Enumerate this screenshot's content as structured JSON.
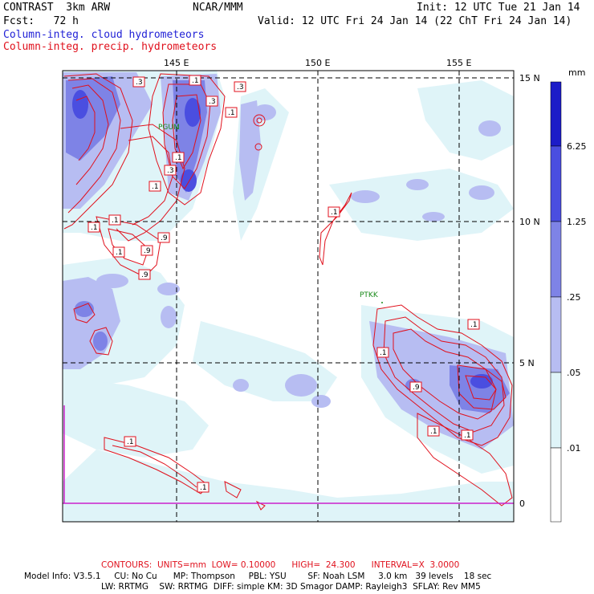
{
  "header": {
    "model": "CONTRAST  3km ARW",
    "org": "NCAR/MMM",
    "init": "Init: 12 UTC Tue 21 Jan 14",
    "fcst": "Fcst:   72 h",
    "valid": "Valid: 12 UTC Fri 24 Jan 14 (22 ChT Fri 24 Jan 14)",
    "field_cloud": "Column-integ. cloud hydrometeors",
    "field_precip": "Column-integ. precip. hydrometeors"
  },
  "map": {
    "lon_labels": [
      "145 E",
      "150 E",
      "155 E"
    ],
    "lat_labels": [
      "15 N",
      "10 N",
      "5 N",
      "0"
    ],
    "stations": [
      "PGUM",
      "PTKK"
    ],
    "contour_labels": [
      ".3",
      ".1",
      ".3",
      ".1",
      ".3",
      ".3",
      ".1",
      ".1",
      ".1",
      ".9",
      ".1",
      ".9",
      ".9",
      ".1",
      ".1",
      ".1",
      ".9",
      ".1",
      ".1",
      ".1",
      ".1",
      ".1"
    ],
    "colors": {
      "cloud_shade_1": "#dff4f8",
      "cloud_shade_2": "#b7bdf2",
      "cloud_shade_3": "#7e83e6",
      "cloud_shade_4": "#4a4ee0",
      "cloud_shade_5": "#1c1cc8",
      "precip_contour": "#e0101c",
      "equator_line": "#cc22cc"
    }
  },
  "colorbar": {
    "unit": "mm",
    "labels": [
      "6.25",
      "1.25",
      ".25",
      ".05",
      ".01"
    ],
    "colors": [
      "#1c1cc8",
      "#4a4ee0",
      "#7e83e6",
      "#b7bdf2",
      "#dff4f8",
      "#ffffff"
    ]
  },
  "footer": {
    "contours": "CONTOURS:  UNITS=mm  LOW= 0.10000      HIGH=  24.300      INTERVAL=X  3.0000",
    "line1": "Model Info: V3.5.1     CU: No Cu      MP: Thompson     PBL: YSU        SF: Noah LSM     3.0 km   39 levels    18 sec",
    "line2": "LW: RRTMG    SW: RRTMG  DIFF: simple KM: 3D Smagor DAMP: Rayleigh3  SFLAY: Rev MM5"
  }
}
